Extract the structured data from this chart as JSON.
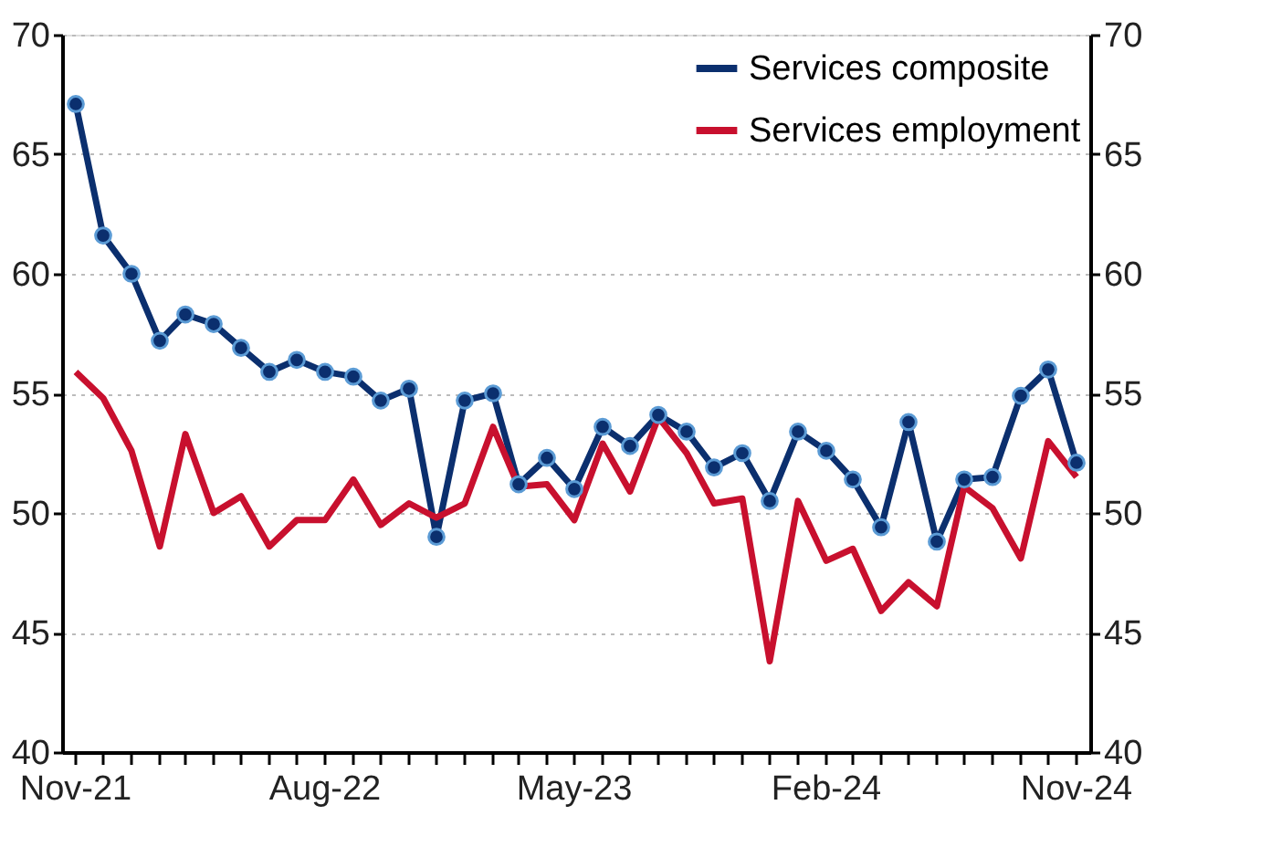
{
  "chart_data": {
    "type": "line",
    "x": [
      "2021-11",
      "2021-12",
      "2022-01",
      "2022-02",
      "2022-03",
      "2022-04",
      "2022-05",
      "2022-06",
      "2022-07",
      "2022-08",
      "2022-09",
      "2022-10",
      "2022-11",
      "2022-12",
      "2023-01",
      "2023-02",
      "2023-03",
      "2023-04",
      "2023-05",
      "2023-06",
      "2023-07",
      "2023-08",
      "2023-09",
      "2023-10",
      "2023-11",
      "2023-12",
      "2024-01",
      "2024-02",
      "2024-03",
      "2024-04",
      "2024-05",
      "2024-06",
      "2024-07",
      "2024-08",
      "2024-09",
      "2024-10",
      "2024-11"
    ],
    "series": [
      {
        "name": "Services composite",
        "color": "#0b2f6e",
        "marker": "circle",
        "values": [
          67.1,
          61.6,
          60.0,
          57.2,
          58.3,
          57.9,
          56.9,
          55.9,
          56.4,
          55.9,
          55.7,
          54.7,
          55.2,
          49.0,
          54.7,
          55.0,
          51.2,
          52.3,
          51.0,
          53.6,
          52.8,
          54.1,
          53.4,
          51.9,
          52.5,
          50.5,
          53.4,
          52.6,
          51.4,
          49.4,
          53.8,
          48.8,
          51.4,
          51.5,
          54.9,
          56.0,
          52.1
        ]
      },
      {
        "name": "Services employment",
        "color": "#c8102e",
        "marker": "none",
        "values": [
          55.9,
          54.8,
          52.6,
          48.6,
          53.3,
          50.0,
          50.7,
          48.6,
          49.7,
          49.7,
          51.4,
          49.5,
          50.4,
          49.8,
          50.4,
          53.6,
          51.1,
          51.2,
          49.7,
          52.9,
          50.9,
          54.0,
          52.5,
          50.4,
          50.6,
          43.8,
          50.5,
          48.0,
          48.5,
          45.9,
          47.1,
          46.1,
          51.1,
          50.2,
          48.1,
          53.0,
          51.5
        ]
      }
    ],
    "xlim": [
      "2021-10-17",
      "2024-11-16"
    ],
    "xticks": [
      {
        "value": "2021-11",
        "label": "Nov-21"
      },
      {
        "value": "2021-12",
        "label": null
      },
      {
        "value": "2022-01",
        "label": null
      },
      {
        "value": "2022-02",
        "label": null
      },
      {
        "value": "2022-03",
        "label": null
      },
      {
        "value": "2022-04",
        "label": null
      },
      {
        "value": "2022-05",
        "label": null
      },
      {
        "value": "2022-06",
        "label": null
      },
      {
        "value": "2022-07",
        "label": null
      },
      {
        "value": "2022-08",
        "label": "Aug-22"
      },
      {
        "value": "2022-09",
        "label": null
      },
      {
        "value": "2022-10",
        "label": null
      },
      {
        "value": "2022-11",
        "label": null
      },
      {
        "value": "2022-12",
        "label": null
      },
      {
        "value": "2023-01",
        "label": null
      },
      {
        "value": "2023-02",
        "label": null
      },
      {
        "value": "2023-03",
        "label": null
      },
      {
        "value": "2023-04",
        "label": null
      },
      {
        "value": "2023-05",
        "label": "May-23"
      },
      {
        "value": "2023-06",
        "label": null
      },
      {
        "value": "2023-07",
        "label": null
      },
      {
        "value": "2023-08",
        "label": null
      },
      {
        "value": "2023-09",
        "label": null
      },
      {
        "value": "2023-10",
        "label": null
      },
      {
        "value": "2023-11",
        "label": null
      },
      {
        "value": "2023-12",
        "label": null
      },
      {
        "value": "2024-01",
        "label": null
      },
      {
        "value": "2024-02",
        "label": "Feb-24"
      },
      {
        "value": "2024-03",
        "label": null
      },
      {
        "value": "2024-04",
        "label": null
      },
      {
        "value": "2024-05",
        "label": null
      },
      {
        "value": "2024-06",
        "label": null
      },
      {
        "value": "2024-07",
        "label": null
      },
      {
        "value": "2024-08",
        "label": null
      },
      {
        "value": "2024-09",
        "label": null
      },
      {
        "value": "2024-10",
        "label": null
      },
      {
        "value": "2024-11",
        "label": "Nov-24"
      }
    ],
    "ylim": [
      40,
      70
    ],
    "yticks": [
      40,
      45,
      50,
      55,
      60,
      65,
      70
    ],
    "y2lim": [
      40,
      70
    ],
    "y2ticks": [
      40,
      45,
      50,
      55,
      60,
      65,
      70
    ],
    "grid": "y",
    "legend": "top right",
    "line_style": "solid"
  }
}
